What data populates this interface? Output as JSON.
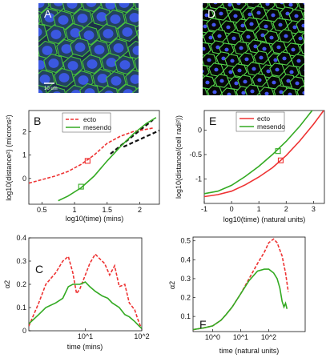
{
  "colors": {
    "ecto": "#ee3333",
    "mesendo": "#33aa22",
    "dash_black": "#111111",
    "cell_edge": "#55d64a",
    "nucleus": "#4455ee"
  },
  "images": {
    "A": {
      "label": "A",
      "scalebar": "10 um"
    },
    "D": {
      "label": "D"
    }
  },
  "chart_data": [
    {
      "panel": "B",
      "type": "line",
      "xlabel": "log10(time) (mins)",
      "ylabel": "log10(distance²) (microns²)",
      "xlim": [
        0.3,
        2.3
      ],
      "ylim": [
        -1.1,
        2.9
      ],
      "xticks": [
        "0.5",
        "1",
        "1.5",
        "2"
      ],
      "yticks": [
        "0",
        "1",
        "2"
      ],
      "legend": {
        "placement": "top-left",
        "entries": [
          "ecto",
          "mesendo"
        ]
      },
      "series": [
        {
          "name": "ecto",
          "style": "dashed",
          "x": [
            0.3,
            0.5,
            0.7,
            0.9,
            1.1,
            1.3,
            1.5,
            1.7,
            1.9,
            2.1,
            2.2
          ],
          "y": [
            -0.2,
            -0.05,
            0.1,
            0.3,
            0.6,
            1.0,
            1.5,
            1.8,
            2.0,
            2.1,
            2.15
          ]
        },
        {
          "name": "mesendo",
          "style": "solid",
          "x": [
            0.75,
            0.9,
            1.1,
            1.3,
            1.5,
            1.7,
            1.9,
            2.1,
            2.25
          ],
          "y": [
            -0.95,
            -0.75,
            -0.4,
            0.1,
            0.75,
            1.35,
            1.9,
            2.35,
            2.6
          ]
        }
      ],
      "fits": [
        {
          "x": [
            1.55,
            2.2
          ],
          "y": [
            1.05,
            2.5
          ]
        },
        {
          "x": [
            1.75,
            2.3
          ],
          "y": [
            1.35,
            2.05
          ]
        }
      ],
      "markers": [
        {
          "series": "ecto",
          "x": 1.2,
          "y": 0.75
        },
        {
          "series": "mesendo",
          "x": 1.1,
          "y": -0.35
        }
      ]
    },
    {
      "panel": "E",
      "type": "line",
      "xlabel": "log10(time) (natural units)",
      "ylabel": "log10(distance/(cell radi²))",
      "xlim": [
        -1,
        3.4
      ],
      "ylim": [
        -1.5,
        0.4
      ],
      "xticks": [
        "-1",
        "0",
        "1",
        "2",
        "3"
      ],
      "yticks": [
        "-1",
        "-0.5",
        "0"
      ],
      "legend": {
        "placement": "top-left",
        "entries": [
          "ecto",
          "mesendo"
        ]
      },
      "series": [
        {
          "name": "ecto",
          "style": "solid",
          "x": [
            -1,
            -0.5,
            0,
            0.5,
            1,
            1.5,
            2,
            2.5,
            3,
            3.4
          ],
          "y": [
            -1.36,
            -1.32,
            -1.25,
            -1.12,
            -0.96,
            -0.77,
            -0.52,
            -0.22,
            0.12,
            0.42
          ]
        },
        {
          "name": "mesendo",
          "style": "solid",
          "x": [
            -1,
            -0.5,
            0,
            0.5,
            1,
            1.5,
            2,
            2.5,
            2.95
          ],
          "y": [
            -1.3,
            -1.25,
            -1.13,
            -0.95,
            -0.74,
            -0.5,
            -0.23,
            0.08,
            0.4
          ]
        }
      ],
      "markers": [
        {
          "series": "ecto",
          "x": 1.8,
          "y": -0.62
        },
        {
          "series": "mesendo",
          "x": 1.7,
          "y": -0.43
        }
      ]
    },
    {
      "panel": "C",
      "type": "line",
      "xscale": "log",
      "xlabel": "time (mins)",
      "ylabel": "α2",
      "xlim": [
        1,
        100
      ],
      "ylim": [
        0,
        0.4
      ],
      "xticks": [
        "10^1",
        "10^2"
      ],
      "yticks": [
        "0",
        "0.1",
        "0.2",
        "0.3",
        "0.4"
      ],
      "series": [
        {
          "name": "ecto",
          "style": "dashed",
          "x": [
            1,
            1.5,
            2,
            3,
            4,
            5,
            6,
            7,
            8,
            10,
            12,
            15,
            18,
            22,
            27,
            33,
            40,
            50,
            60,
            75,
            85,
            95
          ],
          "y": [
            0.02,
            0.12,
            0.2,
            0.25,
            0.3,
            0.32,
            0.25,
            0.16,
            0.18,
            0.24,
            0.29,
            0.33,
            0.31,
            0.29,
            0.24,
            0.28,
            0.19,
            0.2,
            0.12,
            0.09,
            0.05,
            0.02
          ]
        },
        {
          "name": "mesendo",
          "style": "solid",
          "x": [
            1,
            1.5,
            2,
            3,
            4,
            5,
            6,
            8,
            10,
            12,
            15,
            20,
            25,
            30,
            40,
            50,
            60,
            75,
            90,
            100
          ],
          "y": [
            0.03,
            0.07,
            0.1,
            0.12,
            0.14,
            0.19,
            0.2,
            0.2,
            0.21,
            0.19,
            0.17,
            0.15,
            0.14,
            0.12,
            0.1,
            0.07,
            0.06,
            0.04,
            0.02,
            0.01
          ]
        }
      ]
    },
    {
      "panel": "F",
      "type": "line",
      "xscale": "log",
      "xlabel": "time (natural units)",
      "ylabel": "α2",
      "xlim": [
        0.2,
        2000
      ],
      "ylim": [
        0.02,
        0.52
      ],
      "xticks": [
        "10^0",
        "10^1",
        "10^2"
      ],
      "yticks": [
        "0.1",
        "0.2",
        "0.3",
        "0.4",
        "0.5"
      ],
      "series": [
        {
          "name": "ecto",
          "style": "dashed",
          "x": [
            0.2,
            0.5,
            1,
            2,
            3,
            5,
            10,
            20,
            40,
            70,
            100,
            150,
            200,
            300,
            400,
            500
          ],
          "y": [
            0.03,
            0.04,
            0.05,
            0.08,
            0.11,
            0.15,
            0.22,
            0.3,
            0.38,
            0.44,
            0.49,
            0.51,
            0.49,
            0.42,
            0.33,
            0.23
          ]
        },
        {
          "name": "mesendo",
          "style": "solid",
          "x": [
            0.2,
            0.5,
            1,
            2,
            3,
            5,
            10,
            20,
            40,
            70,
            100,
            150,
            200,
            250,
            300,
            350,
            400,
            450
          ],
          "y": [
            0.03,
            0.04,
            0.05,
            0.08,
            0.11,
            0.15,
            0.22,
            0.29,
            0.34,
            0.35,
            0.35,
            0.33,
            0.3,
            0.25,
            0.18,
            0.15,
            0.17,
            0.14
          ]
        }
      ]
    }
  ]
}
